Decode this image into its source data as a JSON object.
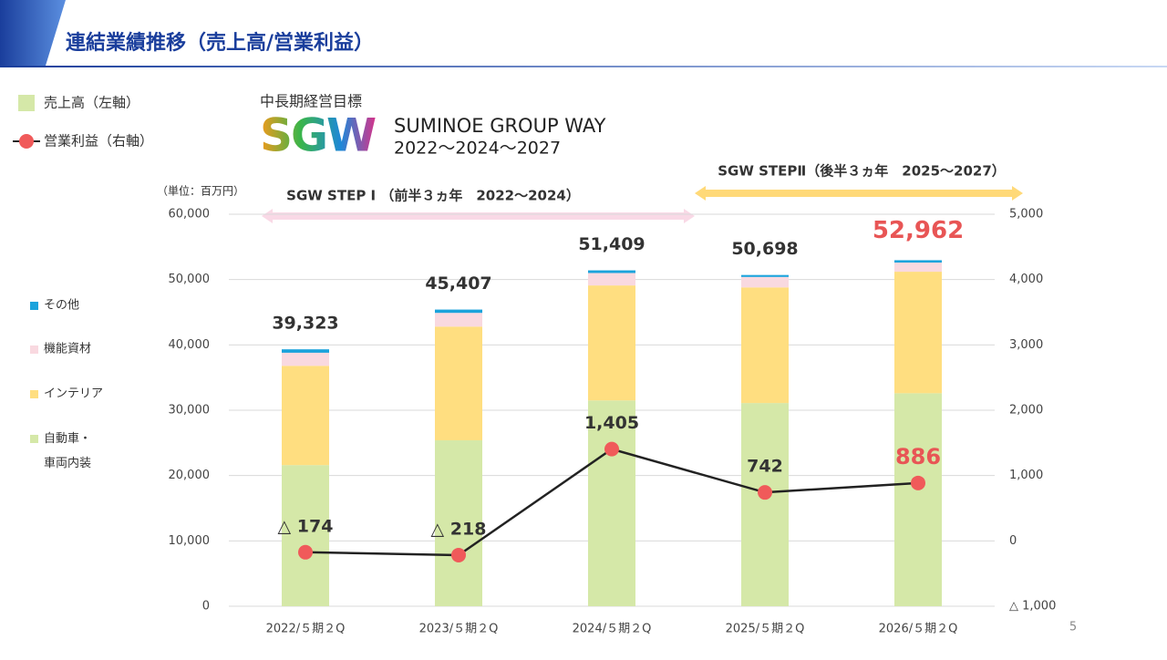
{
  "header": {
    "title": "連結業績推移（売上高/営業利益）",
    "page_number": "5"
  },
  "sgw": {
    "caption": "中長期経営目標",
    "logo": "SGW",
    "name": "SUMINOE GROUP WAY",
    "years": "2022～2024～2027",
    "step1": "SGW STEP Ⅰ （前半３ヵ年　2022～2024）",
    "step2": "SGW STEPⅡ（後半３ヵ年　2025～2027）"
  },
  "chart_data": {
    "type": "bar",
    "stacked": true,
    "unit_label": "（単位：百万円）",
    "categories": [
      "2022/５期２Q",
      "2023/５期２Q",
      "2024/５期２Q",
      "2025/５期２Q",
      "2026/５期２Q"
    ],
    "legend": [
      "売上高（左軸）",
      "営業利益（右軸）"
    ],
    "series": [
      {
        "name": "自動車・車両内装",
        "color": "#d5e8a8",
        "values": [
          21600,
          25400,
          31500,
          31100,
          32600
        ]
      },
      {
        "name": "インテリア",
        "color": "#ffde80",
        "values": [
          15200,
          17400,
          17600,
          17700,
          18600
        ]
      },
      {
        "name": "機能資材",
        "color": "#f9d9e0",
        "values": [
          2000,
          2100,
          1900,
          1600,
          1400
        ]
      },
      {
        "name": "その他",
        "color": "#1ba3dc",
        "values": [
          523,
          507,
          409,
          298,
          362
        ]
      },
      {
        "name": "営業利益",
        "type": "line",
        "axis": "y2",
        "color": "#f05a5a",
        "line_color": "#222222",
        "values": [
          -174,
          -218,
          1405,
          742,
          886
        ],
        "value_labels": [
          "△ 174",
          "△ 218",
          "1,405",
          "742",
          "886"
        ]
      }
    ],
    "totals": [
      39323,
      45407,
      51409,
      50698,
      52962
    ],
    "total_labels": [
      "39,323",
      "45,407",
      "51,409",
      "50,698",
      "52,962"
    ],
    "ylim": [
      0,
      60000
    ],
    "yticks": [
      0,
      {
        "value": 10000,
        "label": "10,000"
      },
      {
        "value": 20000,
        "label": "20,000"
      },
      {
        "value": 30000,
        "label": "30,000"
      },
      {
        "value": 40000,
        "label": "40,000"
      },
      {
        "value": 50000,
        "label": "50,000"
      },
      {
        "value": 60000,
        "label": "60,000"
      }
    ],
    "y2lim": [
      -1000,
      5000
    ],
    "y2ticks": [
      {
        "value": -1000,
        "label": "△ 1,000"
      },
      0,
      {
        "value": 1000,
        "label": "1,000"
      },
      {
        "value": 2000,
        "label": "2,000"
      },
      {
        "value": 3000,
        "label": "3,000"
      },
      {
        "value": 4000,
        "label": "4,000"
      },
      {
        "value": 5000,
        "label": "5,000"
      }
    ],
    "grid": true
  }
}
